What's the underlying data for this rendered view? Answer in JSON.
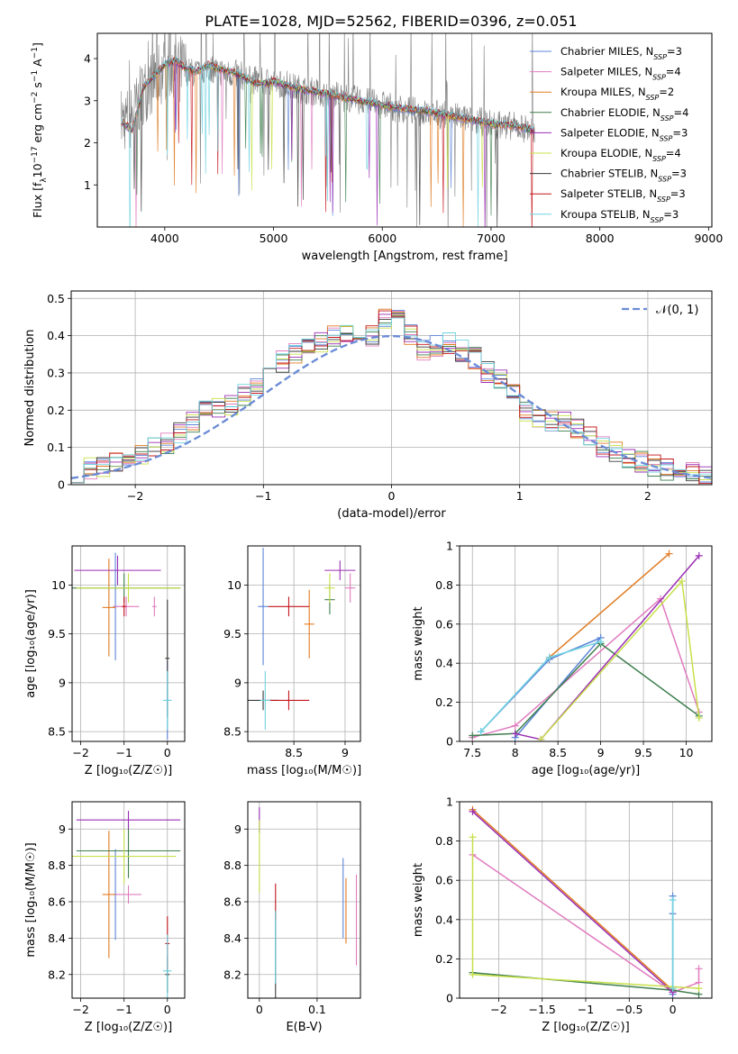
{
  "figure_title": "PLATE=1028, MJD=52562, FIBERID=0396, z=0.051",
  "legend_series": [
    {
      "label": "Chabrier MILES, N",
      "nssp": "=3",
      "color": "#5b84d8"
    },
    {
      "label": "Salpeter MILES, N",
      "nssp": "=4",
      "color": "#e07cbf"
    },
    {
      "label": "Kroupa MILES, N",
      "nssp": "=2",
      "color": "#e07b22"
    },
    {
      "label": "Chabrier ELODIE, N",
      "nssp": "=4",
      "color": "#3f7f4f"
    },
    {
      "label": "Salpeter ELODIE, N",
      "nssp": "=3",
      "color": "#9b2fb5"
    },
    {
      "label": "Kroupa ELODIE, N",
      "nssp": "=4",
      "color": "#c8e04a"
    },
    {
      "label": "Chabrier STELIB, N",
      "nssp": "=3",
      "color": "#3a3a3a"
    },
    {
      "label": "Salpeter STELIB, N",
      "nssp": "=3",
      "color": "#c3151c"
    },
    {
      "label": "Kroupa STELIB, N",
      "nssp": "=3",
      "color": "#6fd3e0"
    }
  ],
  "ssp_subscript": "SSP",
  "colors": {
    "data_gray": "#808080",
    "grid": "#b0b0b0",
    "gauss": "#6a8bd6"
  },
  "chart_data": [
    {
      "id": "spectrum",
      "type": "line",
      "xlabel": "wavelength [Angstrom, rest frame]",
      "ylabel_parts": [
        "Flux [f",
        "λ",
        "10",
        "−17",
        " erg cm",
        "−2",
        " s",
        "−1",
        " A",
        "−1",
        "]"
      ],
      "xlim": [
        3380,
        9030
      ],
      "ylim": [
        0.0,
        4.6
      ],
      "xticks": [
        4000,
        5000,
        6000,
        7000,
        8000,
        9000
      ],
      "yticks": [
        1,
        2,
        3,
        4
      ],
      "grid": false,
      "legend_position": "upper-right",
      "data_wavelength_range": [
        3600,
        7400
      ],
      "observed_flux": {
        "x": [
          3600,
          3700,
          3800,
          3900,
          4000,
          4100,
          4200,
          4300,
          4400,
          4500,
          4600,
          4700,
          4800,
          4900,
          5000,
          5200,
          5400,
          5600,
          5800,
          6000,
          6200,
          6400,
          6600,
          6800,
          7000,
          7200,
          7400
        ],
        "y": [
          2.55,
          2.6,
          3.2,
          3.5,
          3.75,
          3.9,
          3.7,
          3.65,
          3.8,
          3.7,
          3.65,
          3.6,
          3.5,
          3.45,
          3.45,
          3.3,
          3.2,
          3.1,
          3.0,
          2.9,
          2.8,
          2.7,
          2.65,
          2.55,
          2.45,
          2.4,
          2.3
        ]
      },
      "model_flux": {
        "x": [
          3600,
          3700,
          3800,
          3900,
          4000,
          4100,
          4200,
          4300,
          4400,
          4500,
          4600,
          4700,
          4800,
          4900,
          5000,
          5200,
          5400,
          5600,
          5800,
          6000,
          6200,
          6400,
          6600,
          6800,
          7000,
          7200,
          7400
        ],
        "y": [
          2.5,
          2.3,
          3.3,
          3.6,
          3.85,
          3.95,
          3.75,
          3.7,
          3.85,
          3.75,
          3.7,
          3.6,
          3.45,
          3.4,
          3.45,
          3.3,
          3.2,
          3.1,
          3.0,
          2.9,
          2.8,
          2.75,
          2.65,
          2.55,
          2.45,
          2.4,
          2.3
        ]
      }
    },
    {
      "id": "residuals",
      "type": "line",
      "xlabel": "(data-model)/error",
      "ylabel": "Normed distribution",
      "xlim": [
        -2.5,
        2.5
      ],
      "ylim": [
        0.0,
        0.52
      ],
      "xticks": [
        -2,
        -1,
        0,
        1,
        2
      ],
      "yticks": [
        0.0,
        0.1,
        0.2,
        0.3,
        0.4,
        0.5
      ],
      "grid": true,
      "legend_label": "𝒩(0, 1)",
      "legend_position": "upper-right",
      "histogram_center": [
        0.035,
        0.045,
        0.05,
        0.06,
        0.06,
        0.08,
        0.1,
        0.11,
        0.14,
        0.17,
        0.2,
        0.21,
        0.21,
        0.24,
        0.27,
        0.29,
        0.33,
        0.35,
        0.37,
        0.38,
        0.4,
        0.41,
        0.39,
        0.4,
        0.45,
        0.47,
        0.4,
        0.36,
        0.37,
        0.38,
        0.36,
        0.34,
        0.3,
        0.28,
        0.26,
        0.2,
        0.18,
        0.17,
        0.17,
        0.15,
        0.13,
        0.1,
        0.09,
        0.07,
        0.06,
        0.05,
        0.04,
        0.03,
        0.03,
        0.025
      ]
    },
    {
      "id": "age_vs_Z",
      "type": "scatter",
      "xlabel": "Z [log₁₀(Z/Z☉)]",
      "ylabel": "age  [log₁₀(age/yr)]",
      "xlim": [
        -2.2,
        0.4
      ],
      "ylim": [
        8.4,
        10.4
      ],
      "xticks": [
        -2,
        -1,
        0
      ],
      "yticks": [
        8.5,
        9.0,
        9.5,
        10.0
      ],
      "grid": true,
      "points": [
        {
          "c": 0,
          "x": 0.0,
          "y": 8.82,
          "xerr": 0.05,
          "yerr": 0.4
        },
        {
          "c": 0,
          "x": -1.2,
          "y": 9.78,
          "xerr": 0.05,
          "yerr": 0.55
        },
        {
          "c": 1,
          "x": -0.95,
          "y": 9.78,
          "xerr": 0.3,
          "yerr": 0.1
        },
        {
          "c": 1,
          "x": -0.3,
          "y": 9.78,
          "xerr": 0.05,
          "yerr": 0.1
        },
        {
          "c": 2,
          "x": -1.35,
          "y": 9.77,
          "xerr": 0.15,
          "yerr": 0.5
        },
        {
          "c": 3,
          "x": -1.0,
          "y": 9.97,
          "xerr": 1.3,
          "yerr": 0.15
        },
        {
          "c": 4,
          "x": -1.15,
          "y": 10.15,
          "xerr": 1.0,
          "yerr": 0.15
        },
        {
          "c": 5,
          "x": -0.9,
          "y": 9.97,
          "xerr": 1.2,
          "yerr": 0.15
        },
        {
          "c": 6,
          "x": 0.0,
          "y": 9.25,
          "xerr": 0.05,
          "yerr": 0.6
        },
        {
          "c": 7,
          "x": -1.0,
          "y": 9.78,
          "xerr": 0.05,
          "yerr": 0.1
        },
        {
          "c": 8,
          "x": 0.0,
          "y": 8.82,
          "xerr": 0.1,
          "yerr": 0.3
        }
      ]
    },
    {
      "id": "age_vs_mass",
      "type": "scatter",
      "xlabel": "mass [log₁₀(M/M☉)]",
      "ylabel": "",
      "xlim": [
        8.05,
        9.15
      ],
      "ylim": [
        8.4,
        10.4
      ],
      "xticks": [
        8.5,
        9.0
      ],
      "yticks": [
        8.5,
        9.0,
        9.5,
        10.0
      ],
      "grid": true,
      "points": [
        {
          "c": 0,
          "x": 8.2,
          "y": 9.78,
          "xerr": 0.05,
          "yerr": 0.6
        },
        {
          "c": 1,
          "x": 9.05,
          "y": 9.97,
          "xerr": 0.05,
          "yerr": 0.15
        },
        {
          "c": 2,
          "x": 8.65,
          "y": 9.6,
          "xerr": 0.05,
          "yerr": 0.35
        },
        {
          "c": 3,
          "x": 8.85,
          "y": 9.85,
          "xerr": 0.05,
          "yerr": 0.15
        },
        {
          "c": 4,
          "x": 8.95,
          "y": 10.15,
          "xerr": 0.15,
          "yerr": 0.1
        },
        {
          "c": 5,
          "x": 8.85,
          "y": 9.97,
          "xerr": 0.05,
          "yerr": 0.15
        },
        {
          "c": 6,
          "x": 8.2,
          "y": 8.82,
          "xerr": 0.15,
          "yerr": 0.1
        },
        {
          "c": 7,
          "x": 8.45,
          "y": 8.82,
          "xerr": 0.2,
          "yerr": 0.1
        },
        {
          "c": 7,
          "x": 8.45,
          "y": 9.78,
          "xerr": 0.2,
          "yerr": 0.1
        },
        {
          "c": 8,
          "x": 8.22,
          "y": 8.82,
          "xerr": 0.05,
          "yerr": 0.3
        }
      ]
    },
    {
      "id": "weight_vs_age",
      "type": "line",
      "xlabel": "age  [log₁₀(age/yr)]",
      "ylabel": "mass weight",
      "xlim": [
        7.35,
        10.3
      ],
      "ylim": [
        0.0,
        1.0
      ],
      "xticks": [
        7.5,
        8.0,
        8.5,
        9.0,
        9.5,
        10.0
      ],
      "yticks": [
        0.0,
        0.2,
        0.4,
        0.6,
        0.8,
        1.0
      ],
      "grid": true,
      "series": [
        {
          "c": 0,
          "x": [
            8.0,
            9.0,
            8.4,
            7.6
          ],
          "y": [
            0.02,
            0.53,
            0.42,
            0.05
          ]
        },
        {
          "c": 1,
          "x": [
            7.5,
            8.0,
            9.7,
            10.15
          ],
          "y": [
            0.02,
            0.08,
            0.73,
            0.15
          ]
        },
        {
          "c": 2,
          "x": [
            8.4,
            9.8
          ],
          "y": [
            0.43,
            0.96
          ]
        },
        {
          "c": 3,
          "x": [
            7.5,
            8.0,
            9.0,
            10.15
          ],
          "y": [
            0.03,
            0.04,
            0.5,
            0.13
          ]
        },
        {
          "c": 4,
          "x": [
            8.0,
            8.3,
            10.15
          ],
          "y": [
            0.04,
            0.01,
            0.95
          ]
        },
        {
          "c": 5,
          "x": [
            8.3,
            9.95,
            10.15
          ],
          "y": [
            0.01,
            0.82,
            0.12
          ]
        },
        {
          "c": 8,
          "x": [
            7.6,
            8.4,
            9.0
          ],
          "y": [
            0.05,
            0.43,
            0.51
          ]
        }
      ]
    },
    {
      "id": "mass_vs_Z",
      "type": "scatter",
      "xlabel": "Z [log₁₀(Z/Z☉)]",
      "ylabel": "mass [log₁₀(M/M☉)]",
      "xlim": [
        -2.2,
        0.4
      ],
      "ylim": [
        8.07,
        9.15
      ],
      "xticks": [
        -2,
        -1,
        0
      ],
      "yticks": [
        8.2,
        8.4,
        8.6,
        8.8,
        9.0
      ],
      "grid": true,
      "points": [
        {
          "c": 0,
          "x": -1.2,
          "y": 8.64,
          "xerr": 0.05,
          "yerr": 0.25
        },
        {
          "c": 1,
          "x": -0.9,
          "y": 8.64,
          "xerr": 0.3,
          "yerr": 0.05
        },
        {
          "c": 2,
          "x": -1.35,
          "y": 8.64,
          "xerr": 0.15,
          "yerr": 0.35
        },
        {
          "c": 3,
          "x": -0.9,
          "y": 8.88,
          "xerr": 1.2,
          "yerr": 0.15
        },
        {
          "c": 4,
          "x": -0.9,
          "y": 9.05,
          "xerr": 1.2,
          "yerr": 0.05
        },
        {
          "c": 5,
          "x": -1.0,
          "y": 8.85,
          "xerr": 1.2,
          "yerr": 0.15
        },
        {
          "c": 6,
          "x": 0.0,
          "y": 8.2,
          "xerr": 0.05,
          "yerr": 0.1
        },
        {
          "c": 7,
          "x": 0.0,
          "y": 8.37,
          "xerr": 0.05,
          "yerr": 0.15
        },
        {
          "c": 8,
          "x": 0.0,
          "y": 8.22,
          "xerr": 0.1,
          "yerr": 0.2
        }
      ]
    },
    {
      "id": "mass_vs_ebv",
      "type": "scatter",
      "xlabel": "E(B-V)",
      "ylabel": "",
      "xlim": [
        -0.02,
        0.175
      ],
      "ylim": [
        8.07,
        9.15
      ],
      "xticks": [
        0.0,
        0.1
      ],
      "yticks": [
        8.2,
        8.4,
        8.6,
        8.8,
        9.0
      ],
      "grid": true,
      "points": [
        {
          "c": 0,
          "x": 0.145,
          "y": 8.62,
          "xerr": 0.0,
          "yerr": 0.22
        },
        {
          "c": 1,
          "x": 0.168,
          "y": 8.5,
          "xerr": 0.0,
          "yerr": 0.25
        },
        {
          "c": 2,
          "x": 0.15,
          "y": 8.55,
          "xerr": 0.0,
          "yerr": 0.18
        },
        {
          "c": 4,
          "x": 0.0,
          "y": 9.05,
          "xerr": 0.0,
          "yerr": 0.07
        },
        {
          "c": 5,
          "x": 0.0,
          "y": 8.85,
          "xerr": 0.0,
          "yerr": 0.2
        },
        {
          "c": 6,
          "x": 0.028,
          "y": 8.3,
          "xerr": 0.0,
          "yerr": 0.25
        },
        {
          "c": 7,
          "x": 0.028,
          "y": 8.6,
          "xerr": 0.0,
          "yerr": 0.1
        },
        {
          "c": 8,
          "x": 0.028,
          "y": 8.35,
          "xerr": 0.0,
          "yerr": 0.2
        }
      ]
    },
    {
      "id": "weight_vs_Z",
      "type": "line",
      "xlabel": "Z [log₁₀(Z/Z☉)]",
      "ylabel": "mass weight",
      "xlim": [
        -2.45,
        0.45
      ],
      "ylim": [
        0.0,
        1.0
      ],
      "xticks": [
        -2.0,
        -1.5,
        -1.0,
        -0.5,
        0.0
      ],
      "yticks": [
        0.0,
        0.2,
        0.4,
        0.6,
        0.8,
        1.0
      ],
      "grid": true,
      "series": [
        {
          "c": 0,
          "x": [
            0.0,
            0.0,
            0.0
          ],
          "y": [
            0.02,
            0.43,
            0.52
          ]
        },
        {
          "c": 1,
          "x": [
            -2.3,
            0.0,
            0.3,
            0.3
          ],
          "y": [
            0.73,
            0.03,
            0.08,
            0.15
          ]
        },
        {
          "c": 2,
          "x": [
            -2.3,
            0.0
          ],
          "y": [
            0.96,
            0.04
          ]
        },
        {
          "c": 3,
          "x": [
            -2.3,
            0.0,
            0.3
          ],
          "y": [
            0.13,
            0.04,
            0.02
          ]
        },
        {
          "c": 4,
          "x": [
            -2.3,
            0.0
          ],
          "y": [
            0.95,
            0.03
          ]
        },
        {
          "c": 5,
          "x": [
            -2.3,
            -2.3,
            0.3
          ],
          "y": [
            0.82,
            0.12,
            0.05
          ]
        },
        {
          "c": 8,
          "x": [
            0.0,
            0.0
          ],
          "y": [
            0.05,
            0.5
          ]
        }
      ]
    }
  ]
}
